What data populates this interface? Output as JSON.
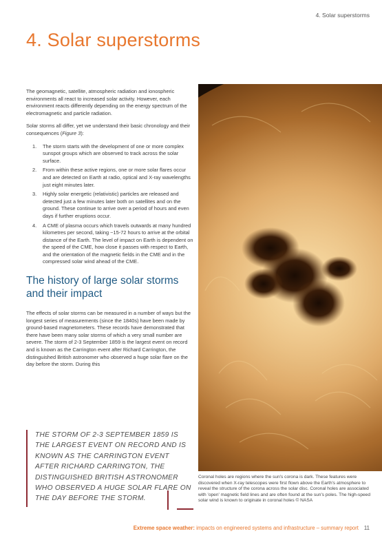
{
  "header": {
    "section": "4. Solar superstorms"
  },
  "title": "4. Solar superstorms",
  "intro": [
    "The geomagnetic, satellite, atmospheric radiation and ionospheric environments all react to increased solar activity. However, each environment reacts differently depending on the energy spectrum of the electromagnetic and particle radiation.",
    "Solar storms all differ, yet we understand their basic chronology and their consequences (Figure 3):"
  ],
  "steps": [
    {
      "num": "1.",
      "text": "The storm starts with the development of one or more complex sunspot groups which are observed to track across the solar surface."
    },
    {
      "num": "2.",
      "text": "From within these active regions, one or more solar flares occur and are detected on Earth at radio, optical and X-ray wavelengths just eight minutes later."
    },
    {
      "num": "3.",
      "text": "Highly solar energetic (relativistic) particles are released and detected just a few minutes later both on satellites and on the ground. These continue to arrive over a period of hours and even days if further eruptions occur."
    },
    {
      "num": "4.",
      "text": "A CME of plasma occurs which travels outwards at many hundred kilometres per second, taking ~15-72 hours to arrive at the orbital distance of the Earth. The level of impact on Earth is dependent on the speed of the CME, how close it passes with respect to Earth, and the orientation of the magnetic fields in the CME and in the compressed solar wind ahead of the CME."
    }
  ],
  "history": {
    "heading": "The history of large solar storms and their impact",
    "body": "The effects of solar storms can be measured in a number of ways but the longest series of measurements (since the 1840s) have been made by ground-based magnetometers. These records have demonstrated that there have been many solar storms of which a very small number are severe. The storm of 2-3 September 1859 is the largest event on record and is known as the Carrington event after Richard Carrington, the distinguished British astronomer who observed a huge solar flare on the day before the storm. During this"
  },
  "pullquote": "The storm of 2-3 September 1859 is the largest event on record and is known as the Carrington event after Richard Carrington, the distinguished British astronomer who observed a huge solar flare on the day before the storm.",
  "image": {
    "icon": "sun-coronal-hole-photo",
    "caption": "Coronal holes are regions where the sun's corona is dark. These features were discovered when X-ray telescopes were first flown above the Earth's atmosphere to reveal the structure of the corona across the solar disc. Coronal holes are associated with 'open' magnetic field lines and are often found at the sun's poles. The high-speed solar wind is known to originate in coronal holes © NASA"
  },
  "footer": {
    "strong": "Extreme space weather:",
    "rest": " impacts on engineered systems and infrastructure – summary report",
    "page": "11"
  },
  "colors": {
    "accent": "#e8772e",
    "heading": "#1f5a84",
    "rule": "#8e2a33"
  }
}
